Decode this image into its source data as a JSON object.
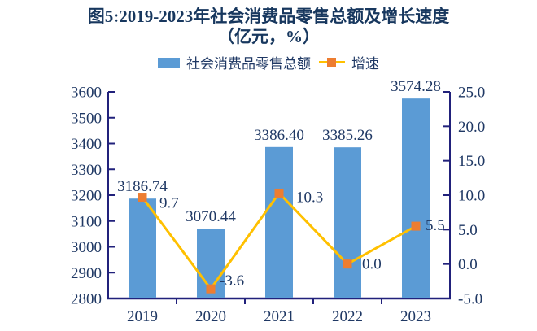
{
  "title": {
    "line1": "图5:2019-2023年社会消费品零售总额及增长速度",
    "line2": "（亿元，%）"
  },
  "legend": {
    "items": [
      {
        "label": "社会消费品零售总额",
        "type": "bar"
      },
      {
        "label": "增速",
        "type": "line"
      }
    ]
  },
  "colors": {
    "bar": "#5B9BD5",
    "line": "#FFC000",
    "marker": "#ED7D31",
    "axis": "#21217B",
    "text": "#1F3864",
    "title": "#17375E"
  },
  "chart_data": {
    "type": "bar+line",
    "categories": [
      "2019",
      "2020",
      "2021",
      "2022",
      "2023"
    ],
    "series": [
      {
        "name": "社会消费品零售总额",
        "type": "bar",
        "axis": "left",
        "values": [
          3186.74,
          3070.44,
          3386.4,
          3385.26,
          3574.28
        ],
        "labels": [
          "3186.74",
          "3070.44",
          "3386.40",
          "3385.26",
          "3574.28"
        ]
      },
      {
        "name": "增速",
        "type": "line",
        "axis": "right",
        "values": [
          9.7,
          -3.6,
          10.3,
          0.0,
          5.5
        ],
        "labels": [
          "9.7",
          "-3.6",
          "10.3",
          "0.0",
          "5.5"
        ]
      }
    ],
    "left_axis": {
      "min": 2800,
      "max": 3600,
      "step": 100,
      "ticks": [
        "2800",
        "2900",
        "3000",
        "3100",
        "3200",
        "3300",
        "3400",
        "3500",
        "3600"
      ]
    },
    "right_axis": {
      "min": -5,
      "max": 25,
      "step": 5,
      "ticks": [
        "-5.0",
        "0.0",
        "5.0",
        "10.0",
        "15.0",
        "20.0",
        "25.0"
      ]
    },
    "grid": false,
    "legend_position": "top"
  }
}
